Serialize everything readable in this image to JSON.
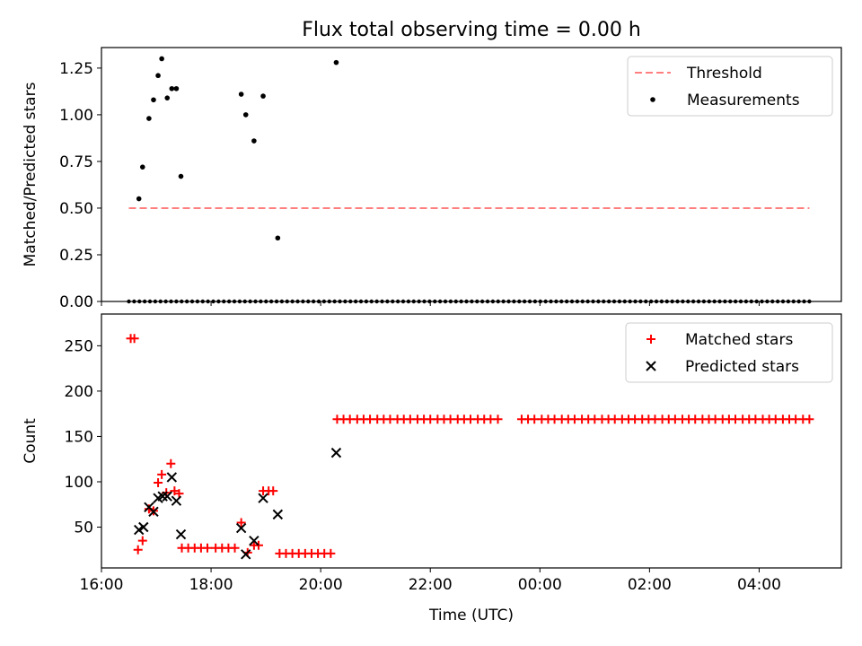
{
  "chart_data": {
    "title": "Flux total observing time = 0.00 h",
    "colors": {
      "threshold": "#ff7f7f",
      "measurements": "#000000",
      "matched": "#ff0000",
      "predicted": "#000000"
    },
    "x_axis": {
      "label": "Time (UTC)",
      "range": [
        "16:00",
        "05:30"
      ],
      "tick_labels": [
        "16:00",
        "18:00",
        "20:00",
        "22:00",
        "00:00",
        "02:00",
        "04:00"
      ]
    },
    "panels": [
      {
        "type": "scatter",
        "ylabel": "Matched/Predicted stars",
        "ylim": [
          0,
          1.36
        ],
        "y_tick_labels": [
          "0.00",
          "0.25",
          "0.50",
          "0.75",
          "1.00",
          "1.25"
        ],
        "legend_position": "top-right",
        "series": [
          {
            "name": "Threshold",
            "style": "dashed-line",
            "points": [
              [
                "16:30",
                0.5
              ],
              [
                "04:55",
                0.5
              ]
            ]
          },
          {
            "name": "Measurements",
            "style": "dot",
            "points": [
              [
                "16:41",
                0.55
              ],
              [
                "16:45",
                0.72
              ],
              [
                "16:52",
                0.98
              ],
              [
                "16:57",
                1.08
              ],
              [
                "17:02",
                1.21
              ],
              [
                "17:06",
                1.3
              ],
              [
                "17:12",
                1.09
              ],
              [
                "17:17",
                1.14
              ],
              [
                "17:22",
                1.14
              ],
              [
                "17:27",
                0.67
              ],
              [
                "18:33",
                1.11
              ],
              [
                "18:38",
                1.0
              ],
              [
                "18:47",
                0.86
              ],
              [
                "18:57",
                1.1
              ],
              [
                "19:13",
                0.34
              ],
              [
                "20:17",
                1.28
              ]
            ],
            "zero_points_from": "16:30",
            "zero_points_to": "04:55",
            "zero_points_count": 130
          }
        ]
      },
      {
        "type": "scatter",
        "ylabel": "Count",
        "ylim": [
          5,
          285
        ],
        "y_tick_labels": [
          "50",
          "100",
          "150",
          "200",
          "250"
        ],
        "legend_position": "top-right",
        "series": [
          {
            "name": "Matched stars",
            "marker": "+",
            "points": [
              [
                "16:32",
                258
              ],
              [
                "16:36",
                258
              ],
              [
                "16:40",
                25
              ],
              [
                "16:45",
                35
              ],
              [
                "16:52",
                70
              ],
              [
                "16:57",
                68
              ],
              [
                "17:02",
                99
              ],
              [
                "17:06",
                108
              ],
              [
                "17:11",
                88
              ],
              [
                "17:16",
                120
              ],
              [
                "17:20",
                90
              ],
              [
                "17:25",
                87
              ],
              [
                "17:28",
                27
              ],
              [
                "17:35",
                27
              ],
              [
                "17:42",
                27
              ],
              [
                "17:49",
                27
              ],
              [
                "17:56",
                27
              ],
              [
                "18:05",
                27
              ],
              [
                "18:12",
                27
              ],
              [
                "18:19",
                27
              ],
              [
                "18:26",
                27
              ],
              [
                "18:33",
                55
              ],
              [
                "18:40",
                22
              ],
              [
                "18:47",
                30
              ],
              [
                "18:52",
                30
              ],
              [
                "18:57",
                90
              ],
              [
                "19:03",
                90
              ],
              [
                "19:08",
                90
              ],
              [
                "19:15",
                21
              ],
              [
                "19:22",
                21
              ],
              [
                "19:29",
                21
              ],
              [
                "19:36",
                21
              ],
              [
                "19:43",
                21
              ],
              [
                "19:50",
                21
              ],
              [
                "19:57",
                21
              ],
              [
                "20:04",
                21
              ],
              [
                "20:11",
                21
              ],
              [
                "20:18",
                169
              ],
              [
                "20:25",
                169
              ],
              [
                "20:32",
                169
              ],
              [
                "20:40",
                169
              ],
              [
                "20:47",
                169
              ],
              [
                "20:54",
                169
              ],
              [
                "21:02",
                169
              ],
              [
                "21:09",
                169
              ],
              [
                "21:16",
                169
              ],
              [
                "21:24",
                169
              ],
              [
                "21:31",
                169
              ],
              [
                "21:38",
                169
              ],
              [
                "21:46",
                169
              ],
              [
                "21:53",
                169
              ],
              [
                "22:00",
                169
              ],
              [
                "22:08",
                169
              ],
              [
                "22:15",
                169
              ],
              [
                "22:22",
                169
              ],
              [
                "22:30",
                169
              ],
              [
                "22:37",
                169
              ],
              [
                "22:44",
                169
              ],
              [
                "22:52",
                169
              ],
              [
                "22:59",
                169
              ],
              [
                "23:06",
                169
              ],
              [
                "23:14",
                169
              ],
              [
                "23:40",
                169
              ],
              [
                "23:47",
                169
              ],
              [
                "23:54",
                169
              ],
              [
                "00:02",
                169
              ],
              [
                "00:09",
                169
              ],
              [
                "00:16",
                169
              ],
              [
                "00:24",
                169
              ],
              [
                "00:31",
                169
              ],
              [
                "00:38",
                169
              ],
              [
                "00:46",
                169
              ],
              [
                "00:53",
                169
              ],
              [
                "01:00",
                169
              ],
              [
                "01:08",
                169
              ],
              [
                "01:15",
                169
              ],
              [
                "01:22",
                169
              ],
              [
                "01:30",
                169
              ],
              [
                "01:37",
                169
              ],
              [
                "01:44",
                169
              ],
              [
                "01:52",
                169
              ],
              [
                "01:59",
                169
              ],
              [
                "02:06",
                169
              ],
              [
                "02:14",
                169
              ],
              [
                "02:21",
                169
              ],
              [
                "02:28",
                169
              ],
              [
                "02:36",
                169
              ],
              [
                "02:43",
                169
              ],
              [
                "02:50",
                169
              ],
              [
                "02:58",
                169
              ],
              [
                "03:05",
                169
              ],
              [
                "03:12",
                169
              ],
              [
                "03:20",
                169
              ],
              [
                "03:27",
                169
              ],
              [
                "03:34",
                169
              ],
              [
                "03:42",
                169
              ],
              [
                "03:49",
                169
              ],
              [
                "03:56",
                169
              ],
              [
                "04:04",
                169
              ],
              [
                "04:11",
                169
              ],
              [
                "04:18",
                169
              ],
              [
                "04:26",
                169
              ],
              [
                "04:33",
                169
              ],
              [
                "04:40",
                169
              ],
              [
                "04:48",
                169
              ],
              [
                "04:55",
                169
              ]
            ]
          },
          {
            "name": "Predicted stars",
            "marker": "x",
            "points": [
              [
                "16:41",
                47
              ],
              [
                "16:46",
                50
              ],
              [
                "16:52",
                72
              ],
              [
                "16:57",
                67
              ],
              [
                "17:02",
                82
              ],
              [
                "17:07",
                84
              ],
              [
                "17:12",
                84
              ],
              [
                "17:17",
                105
              ],
              [
                "17:22",
                79
              ],
              [
                "17:27",
                42
              ],
              [
                "18:33",
                49
              ],
              [
                "18:38",
                20
              ],
              [
                "18:47",
                35
              ],
              [
                "18:57",
                82
              ],
              [
                "19:13",
                64
              ],
              [
                "20:17",
                132
              ]
            ]
          }
        ]
      }
    ]
  }
}
